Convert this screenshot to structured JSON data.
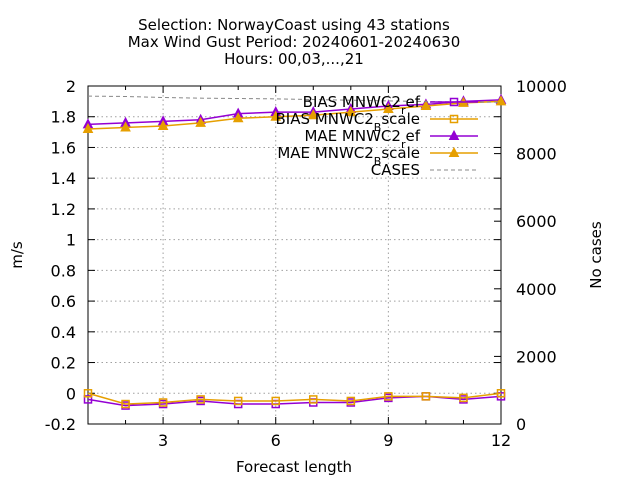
{
  "chart_data": {
    "type": "line",
    "title_lines": [
      "Selection: NorwayCoast using    43 stations",
      "Max Wind Gust   Period: 20240601-20240630",
      "Hours: 00,03,...,21"
    ],
    "xlabel": "Forecast length",
    "ylabel": "m/s",
    "y2label": "No cases",
    "xlim": [
      1,
      12
    ],
    "ylim": [
      -0.2,
      2
    ],
    "y2lim": [
      0,
      10000
    ],
    "x_ticks": [
      3,
      6,
      9,
      12
    ],
    "y_ticks": [
      -0.2,
      0,
      0.2,
      0.4,
      0.6,
      0.8,
      1,
      1.2,
      1.4,
      1.6,
      1.8,
      2
    ],
    "y_tick_labels": [
      "-0.2",
      "0",
      "0.2",
      "0.4",
      "0.6",
      "0.8",
      "1",
      "1.2",
      "1.4",
      "1.6",
      "1.8",
      "2"
    ],
    "y2_ticks": [
      0,
      2000,
      4000,
      6000,
      8000,
      10000
    ],
    "y2_tick_labels": [
      "0",
      "2000",
      "4000",
      "6000",
      "8000",
      "10000"
    ],
    "grid": true,
    "legend_position": "top-right",
    "x": [
      1,
      2,
      3,
      4,
      5,
      6,
      7,
      8,
      9,
      10,
      11,
      12
    ],
    "series": [
      {
        "name": "BIAS MNWC2_ref",
        "legend_main": "BIAS MNWC2",
        "legend_sub": "r",
        "legend_tail": "ef",
        "axis": "y",
        "color": "#9400d3",
        "marker": "square",
        "dashed": false,
        "values": [
          -0.04,
          -0.08,
          -0.07,
          -0.05,
          -0.07,
          -0.07,
          -0.06,
          -0.06,
          -0.03,
          -0.02,
          -0.04,
          -0.02
        ]
      },
      {
        "name": "BIAS MNWC2_Bscale",
        "legend_main": "BIAS MNWC2",
        "legend_sub": "B",
        "legend_tail": "scale",
        "axis": "y",
        "color": "#e69f00",
        "marker": "square",
        "dashed": false,
        "values": [
          0.0,
          -0.07,
          -0.06,
          -0.04,
          -0.05,
          -0.05,
          -0.04,
          -0.05,
          -0.02,
          -0.02,
          -0.03,
          0.0
        ]
      },
      {
        "name": "MAE MNWC2_ref",
        "legend_main": "MAE MNWC2",
        "legend_sub": "r",
        "legend_tail": "ef",
        "axis": "y",
        "color": "#9400d3",
        "marker": "triangle",
        "dashed": false,
        "values": [
          1.75,
          1.76,
          1.77,
          1.78,
          1.82,
          1.83,
          1.83,
          1.85,
          1.87,
          1.88,
          1.9,
          1.91
        ]
      },
      {
        "name": "MAE MNWC2_Bscale",
        "legend_main": "MAE MNWC2",
        "legend_sub": "B",
        "legend_tail": "scale",
        "axis": "y",
        "color": "#e69f00",
        "marker": "triangle",
        "dashed": false,
        "values": [
          1.72,
          1.73,
          1.74,
          1.76,
          1.79,
          1.8,
          1.81,
          1.83,
          1.85,
          1.87,
          1.89,
          1.9
        ]
      },
      {
        "name": "CASES",
        "legend_main": "CASES",
        "legend_sub": "",
        "legend_tail": "",
        "axis": "y2",
        "color": "#888888",
        "marker": "none",
        "dashed": true,
        "values": [
          9700,
          9690,
          9660,
          9640,
          9630,
          9620,
          9600,
          9580,
          9560,
          9540,
          9530,
          9520
        ]
      }
    ]
  }
}
